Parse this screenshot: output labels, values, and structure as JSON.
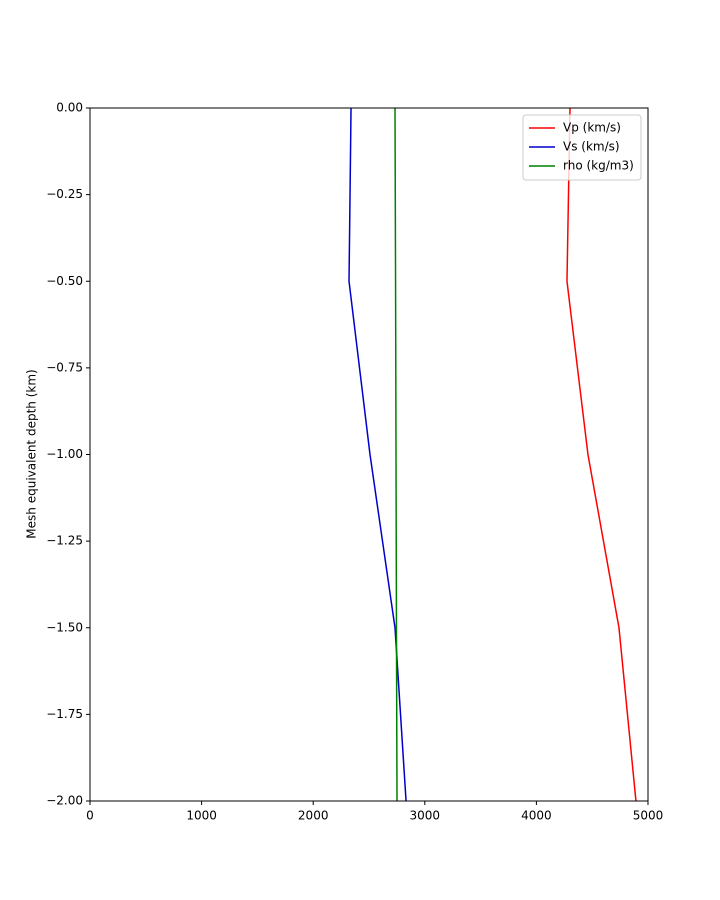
{
  "chart_data": {
    "type": "line",
    "ylabel": "Mesh equivalent depth (km)",
    "y": [
      0,
      -0.5,
      -1.0,
      -1.5,
      -2.0
    ],
    "series": [
      {
        "name": "Vp (km/s)",
        "color": "#ff0000",
        "values": [
          4301,
          4274,
          4462,
          4740,
          4892
        ]
      },
      {
        "name": "Vs (km/s)",
        "color": "#0000cc",
        "values": [
          2339,
          2321,
          2509,
          2733,
          2832
        ]
      },
      {
        "name": "rho (kg/m3)",
        "color": "#008000",
        "values": [
          2733,
          2738,
          2742,
          2746,
          2751
        ]
      }
    ],
    "xlim": [
      0,
      5000
    ],
    "xticks": [
      0,
      1000,
      2000,
      3000,
      4000,
      5000
    ],
    "ylim": [
      -2.0,
      0.0
    ],
    "yticks": [
      {
        "value": 0,
        "label": "0.00"
      },
      {
        "value": -0.25,
        "label": "−0.25"
      },
      {
        "value": -0.5,
        "label": "−0.50"
      },
      {
        "value": -0.75,
        "label": "−0.75"
      },
      {
        "value": -1.0,
        "label": "−1.00"
      },
      {
        "value": -1.25,
        "label": "−1.25"
      },
      {
        "value": -1.5,
        "label": "−1.50"
      },
      {
        "value": -1.75,
        "label": "−1.75"
      },
      {
        "value": -2.0,
        "label": "−2.00"
      }
    ],
    "legend": "upper right",
    "grid": false
  }
}
